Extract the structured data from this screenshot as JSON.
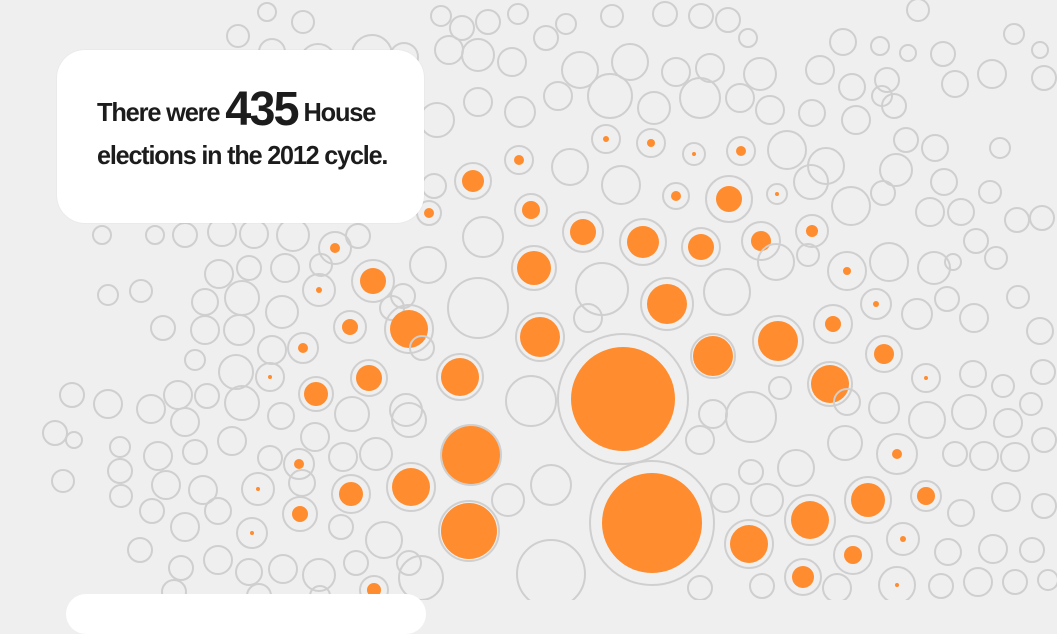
{
  "annotation": {
    "prefix": "There were",
    "number": "435",
    "suffix": "House",
    "line2": "elections in the 2012 cycle."
  },
  "colors": {
    "background": "#efefef",
    "ring": "#cfcfcf",
    "accent": "#ff8c2e",
    "card": "#ffffff",
    "text": "#1c1c1c"
  }
}
